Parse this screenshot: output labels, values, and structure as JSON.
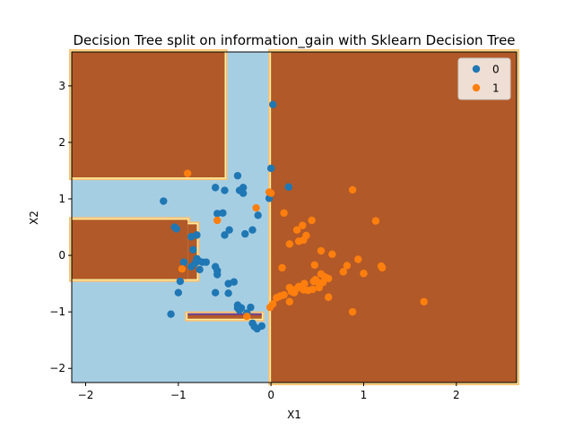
{
  "chart_data": {
    "type": "scatter",
    "title": "Decision Tree split on information_gain with Sklearn Decision Tree",
    "xlabel": "X1",
    "ylabel": "X2",
    "xlim": [
      -2.15,
      2.65
    ],
    "ylim": [
      -2.25,
      3.6
    ],
    "xticks": [
      -2,
      -1,
      0,
      1,
      2
    ],
    "yticks": [
      -2,
      -1,
      0,
      1,
      2,
      3
    ],
    "grid": false,
    "legend_placement": "top-right",
    "region_colors": {
      "0": "#a6cee3",
      "1": "#b15928",
      "boundary_light": "#fdbf6f",
      "boundary_mid": "#ffeea0",
      "boundary_dark": "#6a3d9a"
    },
    "decision_regions": [
      {
        "class": 1,
        "x": [
          -2.15,
          -0.5
        ],
        "y": [
          1.38,
          3.6
        ]
      },
      {
        "class": 1,
        "x": [
          -2.15,
          -0.9
        ],
        "y": [
          -0.42,
          0.63
        ]
      },
      {
        "class": 1,
        "x": [
          -0.9,
          -0.8
        ],
        "y": [
          -0.42,
          0.55
        ]
      },
      {
        "class": 1,
        "x": [
          -0.9,
          -0.1
        ],
        "y": [
          -1.12,
          -1.04
        ]
      },
      {
        "class": 1,
        "x": [
          0.0,
          2.65
        ],
        "y": [
          -2.25,
          3.6
        ]
      }
    ],
    "series": [
      {
        "name": "0",
        "color": "#1f77b4",
        "points": [
          [
            0.02,
            2.67
          ],
          [
            0.0,
            1.54
          ],
          [
            -0.36,
            1.41
          ],
          [
            0.19,
            1.21
          ],
          [
            -0.6,
            1.2
          ],
          [
            -0.5,
            1.15
          ],
          [
            -0.3,
            1.2
          ],
          [
            -0.34,
            1.15
          ],
          [
            -0.3,
            1.1
          ],
          [
            -1.16,
            0.96
          ],
          [
            -0.02,
            1.01
          ],
          [
            -0.58,
            0.74
          ],
          [
            -0.52,
            0.75
          ],
          [
            -0.14,
            0.71
          ],
          [
            -1.04,
            0.5
          ],
          [
            -1.02,
            0.47
          ],
          [
            -0.45,
            0.45
          ],
          [
            -0.2,
            0.45
          ],
          [
            -0.5,
            0.36
          ],
          [
            -0.28,
            0.38
          ],
          [
            -0.86,
            0.33
          ],
          [
            -0.8,
            0.36
          ],
          [
            -0.84,
            0.1
          ],
          [
            -0.8,
            -0.06
          ],
          [
            -0.78,
            -0.1
          ],
          [
            -0.82,
            -0.14
          ],
          [
            -0.74,
            -0.12
          ],
          [
            -0.7,
            -0.12
          ],
          [
            -0.94,
            -0.12
          ],
          [
            -0.6,
            -0.2
          ],
          [
            -0.77,
            -0.25
          ],
          [
            -0.58,
            -0.27
          ],
          [
            -0.58,
            -0.34
          ],
          [
            -0.98,
            -0.46
          ],
          [
            -0.46,
            -0.5
          ],
          [
            -0.4,
            -0.47
          ],
          [
            -1.0,
            -0.66
          ],
          [
            -0.6,
            -0.66
          ],
          [
            -0.46,
            -0.67
          ],
          [
            -0.36,
            -0.88
          ],
          [
            -0.36,
            -0.93
          ],
          [
            -0.32,
            -0.93
          ],
          [
            -0.22,
            -0.92
          ],
          [
            -0.34,
            -0.97
          ],
          [
            -1.08,
            -1.04
          ],
          [
            -0.26,
            -1.02
          ],
          [
            -0.2,
            -1.2
          ],
          [
            -0.18,
            -1.26
          ],
          [
            -0.15,
            -1.3
          ],
          [
            -0.1,
            -1.25
          ],
          [
            -0.86,
            -0.2
          ]
        ]
      },
      {
        "name": "1",
        "color": "#ff7f0e",
        "points": [
          [
            -0.9,
            1.45
          ],
          [
            0.88,
            1.16
          ],
          [
            -0.02,
            1.12
          ],
          [
            0.0,
            1.1
          ],
          [
            -0.16,
            0.84
          ],
          [
            0.14,
            0.75
          ],
          [
            -0.58,
            0.62
          ],
          [
            1.13,
            0.61
          ],
          [
            0.44,
            0.62
          ],
          [
            0.34,
            0.53
          ],
          [
            0.28,
            0.45
          ],
          [
            0.38,
            0.35
          ],
          [
            0.2,
            0.2
          ],
          [
            0.3,
            0.25
          ],
          [
            0.35,
            0.27
          ],
          [
            0.54,
            0.08
          ],
          [
            0.66,
            0.02
          ],
          [
            0.94,
            -0.07
          ],
          [
            0.82,
            -0.18
          ],
          [
            1.19,
            -0.19
          ],
          [
            1.2,
            -0.22
          ],
          [
            0.47,
            -0.17
          ],
          [
            0.12,
            -0.22
          ],
          [
            0.78,
            -0.29
          ],
          [
            -0.96,
            -0.24
          ],
          [
            1.0,
            -0.32
          ],
          [
            0.54,
            -0.33
          ],
          [
            0.58,
            -0.38
          ],
          [
            0.48,
            -0.43
          ],
          [
            0.62,
            -0.41
          ],
          [
            0.46,
            -0.46
          ],
          [
            0.5,
            -0.47
          ],
          [
            0.36,
            -0.5
          ],
          [
            0.56,
            -0.48
          ],
          [
            0.2,
            -0.57
          ],
          [
            0.3,
            -0.55
          ],
          [
            0.34,
            -0.58
          ],
          [
            0.27,
            -0.6
          ],
          [
            0.35,
            -0.61
          ],
          [
            0.4,
            -0.62
          ],
          [
            0.45,
            -0.6
          ],
          [
            0.52,
            -0.57
          ],
          [
            0.22,
            -0.64
          ],
          [
            0.25,
            -0.66
          ],
          [
            0.1,
            -0.72
          ],
          [
            0.14,
            -0.7
          ],
          [
            0.06,
            -0.75
          ],
          [
            0.62,
            -0.74
          ],
          [
            0.2,
            -0.82
          ],
          [
            0.02,
            -0.86
          ],
          [
            -0.01,
            -0.92
          ],
          [
            0.88,
            -1.0
          ],
          [
            1.65,
            -0.82
          ],
          [
            -0.26,
            -1.08
          ]
        ]
      }
    ]
  }
}
